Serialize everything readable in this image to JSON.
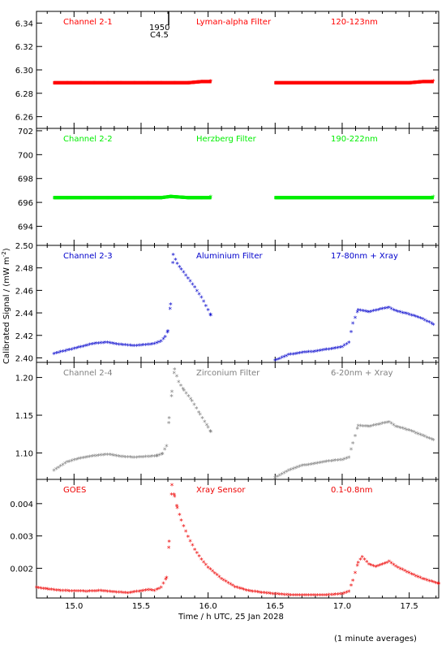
{
  "xlabel": "Time / h UTC, 25 Jan 2028",
  "ylabel": "Calibrated Signal / (mW m",
  "ylabel_sup": "-2",
  "ylabel_end": ")",
  "footnote": "(1 minute averages)",
  "marker_top": "1950",
  "marker_bottom": "C4.5",
  "chart_data": [
    {
      "type": "scatter",
      "panel": "Channel 2-1",
      "labels": [
        "Channel 2-1",
        "Lyman-alpha Filter",
        "120-123nm"
      ],
      "color": "#ff0000",
      "xlim": [
        14.72,
        17.72
      ],
      "ylim": [
        6.25,
        6.35
      ],
      "yticks": [
        "6.26",
        "6.28",
        "6.30",
        "6.32",
        "6.34"
      ],
      "ytick_values": [
        6.26,
        6.28,
        6.3,
        6.32,
        6.34
      ],
      "xticks": [
        "15.0",
        "15.5",
        "16.0",
        "16.5",
        "17.0",
        "17.5"
      ],
      "xtick_values": [
        15.0,
        15.5,
        16.0,
        16.5,
        17.0,
        17.5
      ],
      "series": [
        {
          "x": [
            14.85,
            14.95,
            15.05,
            15.15,
            15.25,
            15.35,
            15.45,
            15.55,
            15.65,
            15.75,
            15.85,
            15.95,
            16.02
          ],
          "y": [
            6.289,
            6.289,
            6.289,
            6.289,
            6.289,
            6.289,
            6.289,
            6.289,
            6.289,
            6.289,
            6.289,
            6.29,
            6.29
          ]
        },
        {
          "x": [
            16.5,
            16.6,
            16.7,
            16.8,
            16.9,
            17.0,
            17.1,
            17.2,
            17.3,
            17.4,
            17.5,
            17.6,
            17.68
          ],
          "y": [
            6.289,
            6.289,
            6.289,
            6.289,
            6.289,
            6.289,
            6.289,
            6.289,
            6.289,
            6.289,
            6.289,
            6.29,
            6.29
          ]
        }
      ]
    },
    {
      "type": "scatter",
      "panel": "Channel 2-2",
      "labels": [
        "Channel 2-2",
        "Herzberg Filter",
        "190-222nm"
      ],
      "color": "#00ee00",
      "xlim": [
        14.72,
        17.72
      ],
      "ylim": [
        692.4,
        702.2
      ],
      "yticks": [
        "694",
        "696",
        "698",
        "700",
        "702"
      ],
      "ytick_values": [
        694,
        696,
        698,
        700,
        702
      ],
      "xticks": [
        "15.0",
        "15.5",
        "16.0",
        "16.5",
        "17.0",
        "17.5"
      ],
      "xtick_values": [
        15.0,
        15.5,
        16.0,
        16.5,
        17.0,
        17.5
      ],
      "series": [
        {
          "x": [
            14.85,
            14.95,
            15.05,
            15.15,
            15.25,
            15.35,
            15.45,
            15.55,
            15.65,
            15.72,
            15.85,
            15.95,
            16.02
          ],
          "y": [
            696.4,
            696.4,
            696.4,
            696.4,
            696.4,
            696.4,
            696.4,
            696.4,
            696.4,
            696.5,
            696.4,
            696.4,
            696.4
          ]
        },
        {
          "x": [
            16.5,
            16.6,
            16.7,
            16.8,
            16.9,
            17.0,
            17.1,
            17.2,
            17.3,
            17.4,
            17.5,
            17.6,
            17.68
          ],
          "y": [
            696.4,
            696.4,
            696.4,
            696.4,
            696.4,
            696.4,
            696.4,
            696.4,
            696.4,
            696.4,
            696.4,
            696.4,
            696.4
          ]
        }
      ]
    },
    {
      "type": "scatter",
      "panel": "Channel 2-3",
      "labels": [
        "Channel 2-3",
        "Aluminium Filter",
        "17-80nm + Xray"
      ],
      "color": "#0000cc",
      "xlim": [
        14.72,
        17.72
      ],
      "ylim": [
        2.396,
        2.5
      ],
      "yticks": [
        "2.40",
        "2.42",
        "2.44",
        "2.46",
        "2.48",
        "2.50"
      ],
      "ytick_values": [
        2.4,
        2.42,
        2.44,
        2.46,
        2.48,
        2.5
      ],
      "xticks": [
        "15.0",
        "15.5",
        "16.0",
        "16.5",
        "17.0",
        "17.5"
      ],
      "xtick_values": [
        15.0,
        15.5,
        16.0,
        16.5,
        17.0,
        17.5
      ],
      "series": [
        {
          "x": [
            14.85,
            14.95,
            15.05,
            15.15,
            15.25,
            15.35,
            15.45,
            15.55,
            15.6,
            15.65,
            15.68,
            15.7,
            15.72,
            15.74,
            15.77,
            15.8,
            15.85,
            15.9,
            15.95,
            16.0,
            16.02
          ],
          "y": [
            2.403,
            2.406,
            2.409,
            2.412,
            2.413,
            2.411,
            2.41,
            2.411,
            2.412,
            2.414,
            2.418,
            2.423,
            2.447,
            2.491,
            2.483,
            2.478,
            2.47,
            2.462,
            2.453,
            2.442,
            2.437
          ]
        },
        {
          "x": [
            16.5,
            16.6,
            16.7,
            16.8,
            16.9,
            16.95,
            17.0,
            17.05,
            17.08,
            17.12,
            17.2,
            17.3,
            17.35,
            17.4,
            17.5,
            17.6,
            17.68
          ],
          "y": [
            2.397,
            2.402,
            2.404,
            2.405,
            2.407,
            2.408,
            2.409,
            2.413,
            2.43,
            2.442,
            2.44,
            2.443,
            2.444,
            2.441,
            2.438,
            2.434,
            2.429
          ]
        }
      ]
    },
    {
      "type": "scatter",
      "panel": "Channel 2-4",
      "labels": [
        "Channel 2-4",
        "Zirconium Filter",
        "6-20nm + Xray"
      ],
      "color": "#808080",
      "xlim": [
        14.72,
        17.72
      ],
      "ylim": [
        1.065,
        1.22
      ],
      "yticks": [
        "1.10",
        "1.15",
        "1.20"
      ],
      "ytick_values": [
        1.1,
        1.15,
        1.2
      ],
      "xticks": [
        "15.0",
        "15.5",
        "16.0",
        "16.5",
        "17.0",
        "17.5"
      ],
      "xtick_values": [
        15.0,
        15.5,
        16.0,
        16.5,
        17.0,
        17.5
      ],
      "series": [
        {
          "x": [
            14.85,
            14.95,
            15.05,
            15.15,
            15.25,
            15.35,
            15.45,
            15.55,
            15.62,
            15.66,
            15.69,
            15.71,
            15.73,
            15.75,
            15.78,
            15.82,
            15.88,
            15.94,
            16.0,
            16.02
          ],
          "y": [
            1.076,
            1.087,
            1.092,
            1.095,
            1.097,
            1.094,
            1.093,
            1.094,
            1.095,
            1.098,
            1.108,
            1.145,
            1.18,
            1.21,
            1.193,
            1.182,
            1.168,
            1.15,
            1.133,
            1.127
          ]
        },
        {
          "x": [
            16.5,
            16.6,
            16.7,
            16.8,
            16.9,
            17.0,
            17.05,
            17.08,
            17.12,
            17.2,
            17.3,
            17.35,
            17.4,
            17.5,
            17.6,
            17.68
          ],
          "y": [
            1.066,
            1.076,
            1.082,
            1.085,
            1.088,
            1.09,
            1.093,
            1.112,
            1.135,
            1.134,
            1.138,
            1.14,
            1.134,
            1.129,
            1.122,
            1.116
          ]
        }
      ]
    },
    {
      "type": "scatter",
      "panel": "GOES",
      "labels": [
        "GOES",
        "Xray Sensor",
        "0.1-0.8nm"
      ],
      "color": "#ee0000",
      "xlim": [
        14.72,
        17.72
      ],
      "ylim": [
        0.00108,
        0.00475
      ],
      "yticks": [
        "0.002",
        "0.003",
        "0.004"
      ],
      "ytick_values": [
        0.002,
        0.003,
        0.004
      ],
      "xticks": [
        "15.0",
        "15.5",
        "16.0",
        "16.5",
        "17.0",
        "17.5"
      ],
      "xtick_values": [
        15.0,
        15.5,
        16.0,
        16.5,
        17.0,
        17.5
      ],
      "series": [
        {
          "x": [
            14.72,
            14.8,
            14.9,
            15.0,
            15.1,
            15.2,
            15.3,
            15.4,
            15.5,
            15.55,
            15.6,
            15.65,
            15.69,
            15.71,
            15.73,
            15.75,
            15.77,
            15.8,
            15.85,
            15.9,
            15.95,
            16.0,
            16.1,
            16.2,
            16.3,
            16.4,
            16.5,
            16.6,
            16.7,
            16.8,
            16.9,
            17.0,
            17.05,
            17.08,
            17.12,
            17.15,
            17.2,
            17.25,
            17.3,
            17.35,
            17.4,
            17.5,
            17.6,
            17.72
          ],
          "y": [
            0.00138,
            0.00133,
            0.00128,
            0.00127,
            0.00126,
            0.00128,
            0.00124,
            0.00121,
            0.00127,
            0.00131,
            0.00128,
            0.00138,
            0.00168,
            0.0028,
            0.00455,
            0.0042,
            0.00385,
            0.00345,
            0.00295,
            0.00255,
            0.00225,
            0.002,
            0.00165,
            0.0014,
            0.00128,
            0.00122,
            0.00118,
            0.00115,
            0.00114,
            0.00114,
            0.00115,
            0.00118,
            0.00125,
            0.0016,
            0.00215,
            0.00232,
            0.0021,
            0.00202,
            0.0021,
            0.00218,
            0.00203,
            0.00183,
            0.00165,
            0.0015
          ]
        }
      ]
    }
  ]
}
